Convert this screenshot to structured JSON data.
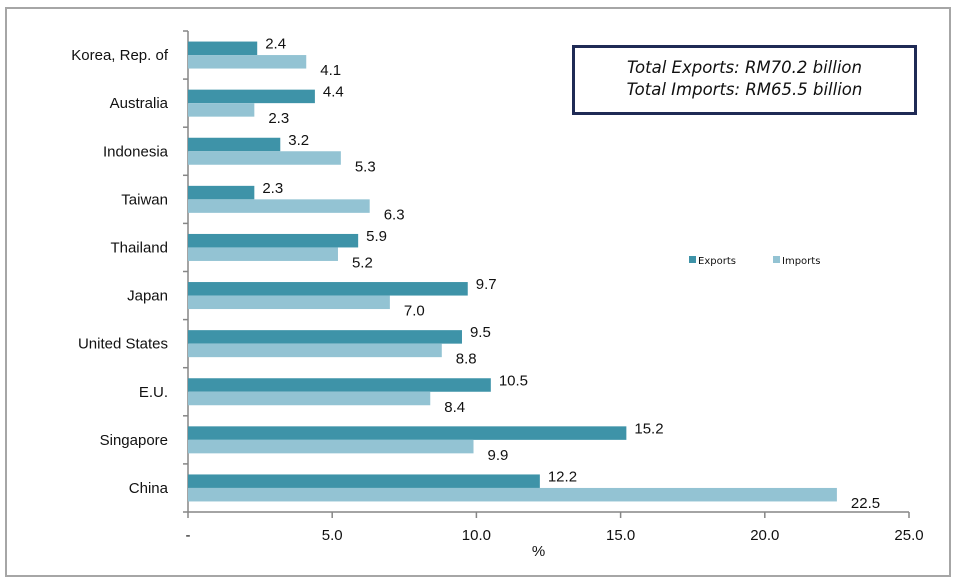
{
  "chart_data": {
    "type": "bar",
    "orientation": "horizontal",
    "title": "",
    "xlabel": "%",
    "ylabel": "",
    "xlim": [
      0,
      25
    ],
    "x_ticks": [
      "-",
      "5.0",
      "10.0",
      "15.0",
      "20.0",
      "25.0"
    ],
    "categories": [
      "Korea, Rep. of",
      "Australia",
      "Indonesia",
      "Taiwan",
      "Thailand",
      "Japan",
      "United States",
      "E.U.",
      "Singapore",
      "China"
    ],
    "series": [
      {
        "name": "Exports",
        "color": "#3e93a8",
        "values": [
          2.4,
          4.4,
          3.2,
          2.3,
          5.9,
          9.7,
          9.5,
          10.5,
          15.2,
          12.2
        ]
      },
      {
        "name": "Imports",
        "color": "#93c3d3",
        "values": [
          4.1,
          2.3,
          5.3,
          6.3,
          5.2,
          7.0,
          8.8,
          8.4,
          9.9,
          22.5
        ]
      }
    ],
    "legend_placement": "right",
    "annotations": [
      "Total Exports: RM70.2 billion",
      "Total Imports: RM65.5 billion"
    ]
  }
}
